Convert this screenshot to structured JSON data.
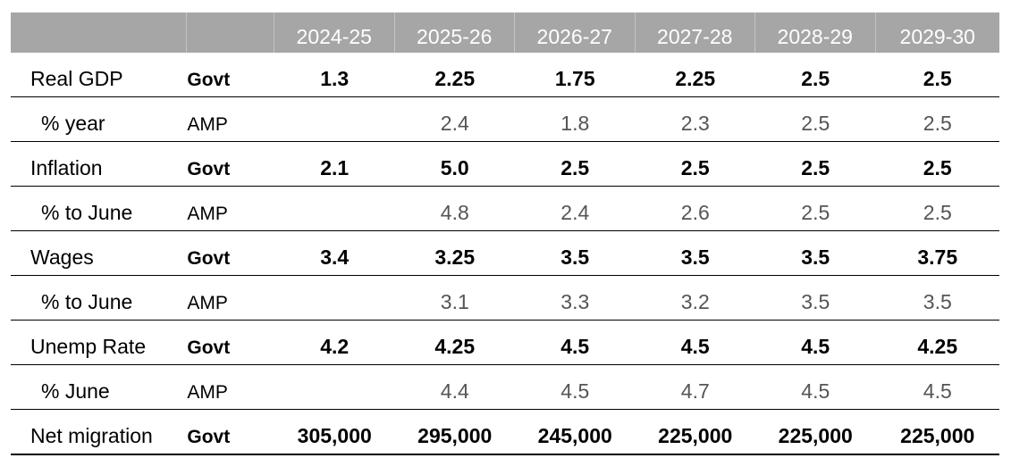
{
  "header": {
    "years": [
      "2024-25",
      "2025-26",
      "2026-27",
      "2027-28",
      "2028-29",
      "2029-30"
    ]
  },
  "rows": [
    {
      "label": "Real GDP",
      "source": "Govt",
      "values": [
        "1.3",
        "2.25",
        "1.75",
        "2.25",
        "2.5",
        "2.5"
      ]
    },
    {
      "label": "% year",
      "source": "AMP",
      "values": [
        "",
        "2.4",
        "1.8",
        "2.3",
        "2.5",
        "2.5"
      ]
    },
    {
      "label": "Inflation",
      "source": "Govt",
      "values": [
        "2.1",
        "5.0",
        "2.5",
        "2.5",
        "2.5",
        "2.5"
      ]
    },
    {
      "label": "% to June",
      "source": "AMP",
      "values": [
        "",
        "4.8",
        "2.4",
        "2.6",
        "2.5",
        "2.5"
      ]
    },
    {
      "label": "Wages",
      "source": "Govt",
      "values": [
        "3.4",
        "3.25",
        "3.5",
        "3.5",
        "3.5",
        "3.75"
      ]
    },
    {
      "label": "% to June",
      "source": "AMP",
      "values": [
        "",
        "3.1",
        "3.3",
        "3.2",
        "3.5",
        "3.5"
      ]
    },
    {
      "label": "Unemp Rate",
      "source": "Govt",
      "values": [
        "4.2",
        "4.25",
        "4.5",
        "4.5",
        "4.5",
        "4.25"
      ]
    },
    {
      "label": "% June",
      "source": "AMP",
      "values": [
        "",
        "4.4",
        "4.5",
        "4.7",
        "4.5",
        "4.5"
      ]
    },
    {
      "label": "Net migration",
      "source": "Govt",
      "values": [
        "305,000",
        "295,000",
        "245,000",
        "225,000",
        "225,000",
        "225,000"
      ]
    }
  ]
}
